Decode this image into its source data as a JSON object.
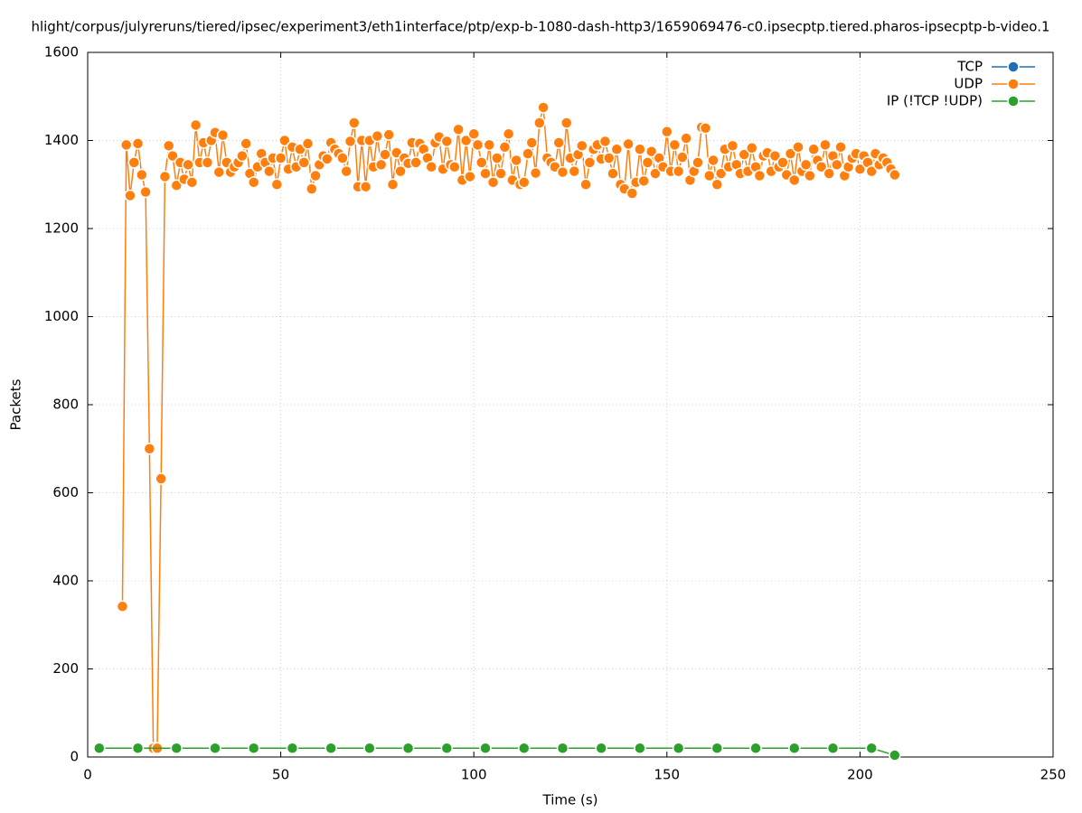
{
  "chart_data": {
    "type": "line",
    "title": "hlight/corpus/julyreruns/tiered/ipsec/experiment3/eth1interface/ptp/exp-b-1080-dash-http3/1659069476-c0.ipsecptp.tiered.pharos-ipsecptp-b-video.1",
    "x_label": "Time (s)",
    "y_label": "Packets",
    "xlim": [
      0,
      250
    ],
    "xticks": [
      0,
      50,
      100,
      150,
      200,
      250
    ],
    "ylim": [
      0,
      1600
    ],
    "yticks": [
      0,
      200,
      400,
      600,
      800,
      1000,
      1200,
      1400,
      1600
    ],
    "grid": true,
    "legend": "top-right",
    "series": [
      {
        "name": "TCP",
        "color": "#1f6fb4",
        "x": [],
        "values": []
      },
      {
        "name": "UDP",
        "color": "#ff7f0e",
        "x": [
          9,
          10,
          11,
          12,
          13,
          14,
          15,
          16,
          17,
          18,
          19,
          20,
          21,
          22,
          23,
          24,
          25,
          26,
          27,
          28,
          29,
          30,
          31,
          32,
          33,
          34,
          35,
          36,
          37,
          38,
          39,
          40,
          41,
          42,
          43,
          44,
          45,
          46,
          47,
          48,
          49,
          50,
          51,
          52,
          53,
          54,
          55,
          56,
          57,
          58,
          59,
          60,
          61,
          62,
          63,
          64,
          65,
          66,
          67,
          68,
          69,
          70,
          71,
          72,
          73,
          74,
          75,
          76,
          77,
          78,
          79,
          80,
          81,
          82,
          83,
          84,
          85,
          86,
          87,
          88,
          89,
          90,
          91,
          92,
          93,
          94,
          95,
          96,
          97,
          98,
          99,
          100,
          101,
          102,
          103,
          104,
          105,
          106,
          107,
          108,
          109,
          110,
          111,
          112,
          113,
          114,
          115,
          116,
          117,
          118,
          119,
          120,
          121,
          122,
          123,
          124,
          125,
          126,
          127,
          128,
          129,
          130,
          131,
          132,
          133,
          134,
          135,
          136,
          137,
          138,
          139,
          140,
          141,
          142,
          143,
          144,
          145,
          146,
          147,
          148,
          149,
          150,
          151,
          152,
          153,
          154,
          155,
          156,
          157,
          158,
          159,
          160,
          161,
          162,
          163,
          164,
          165,
          166,
          167,
          168,
          169,
          170,
          171,
          172,
          173,
          174,
          175,
          176,
          177,
          178,
          179,
          180,
          181,
          182,
          183,
          184,
          185,
          186,
          187,
          188,
          189,
          190,
          191,
          192,
          193,
          194,
          195,
          196,
          197,
          198,
          199,
          200,
          201,
          202,
          203,
          204,
          205,
          206,
          207,
          208,
          209
        ],
        "values": [
          342,
          1390,
          1275,
          1350,
          1393,
          1322,
          1283,
          700,
          20,
          20,
          632,
          1318,
          1388,
          1365,
          1298,
          1350,
          1312,
          1345,
          1305,
          1435,
          1350,
          1395,
          1350,
          1400,
          1418,
          1328,
          1412,
          1350,
          1328,
          1340,
          1350,
          1365,
          1393,
          1325,
          1305,
          1340,
          1370,
          1350,
          1330,
          1360,
          1300,
          1360,
          1400,
          1335,
          1385,
          1340,
          1380,
          1350,
          1393,
          1290,
          1320,
          1345,
          1365,
          1358,
          1395,
          1380,
          1370,
          1360,
          1330,
          1398,
          1440,
          1295,
          1400,
          1295,
          1400,
          1340,
          1410,
          1345,
          1368,
          1413,
          1300,
          1372,
          1330,
          1360,
          1348,
          1395,
          1350,
          1393,
          1380,
          1360,
          1340,
          1395,
          1408,
          1335,
          1398,
          1345,
          1340,
          1425,
          1310,
          1400,
          1318,
          1415,
          1390,
          1350,
          1325,
          1390,
          1305,
          1360,
          1325,
          1385,
          1415,
          1310,
          1355,
          1300,
          1305,
          1370,
          1395,
          1326,
          1440,
          1475,
          1360,
          1350,
          1340,
          1395,
          1328,
          1440,
          1360,
          1330,
          1368,
          1388,
          1300,
          1350,
          1380,
          1390,
          1358,
          1398,
          1360,
          1325,
          1380,
          1300,
          1290,
          1392,
          1280,
          1305,
          1380,
          1308,
          1350,
          1375,
          1325,
          1360,
          1340,
          1420,
          1330,
          1390,
          1330,
          1362,
          1405,
          1310,
          1330,
          1350,
          1430,
          1428,
          1320,
          1355,
          1300,
          1325,
          1380,
          1340,
          1388,
          1345,
          1325,
          1368,
          1330,
          1383,
          1340,
          1320,
          1365,
          1372,
          1330,
          1365,
          1340,
          1350,
          1322,
          1370,
          1310,
          1385,
          1330,
          1345,
          1320,
          1380,
          1355,
          1340,
          1390,
          1325,
          1365,
          1345,
          1385,
          1320,
          1340,
          1360,
          1370,
          1335,
          1365,
          1350,
          1330,
          1370,
          1345,
          1360,
          1350,
          1335,
          1322
        ]
      },
      {
        "name": "IP (!TCP  !UDP)",
        "color": "#2ca02c",
        "x": [
          3,
          13,
          23,
          33,
          43,
          53,
          63,
          73,
          83,
          93,
          103,
          113,
          123,
          133,
          143,
          153,
          163,
          173,
          183,
          193,
          203,
          209
        ],
        "values": [
          20,
          20,
          20,
          20,
          20,
          20,
          20,
          20,
          20,
          20,
          20,
          20,
          20,
          20,
          20,
          20,
          20,
          20,
          20,
          20,
          20,
          4
        ]
      }
    ]
  }
}
